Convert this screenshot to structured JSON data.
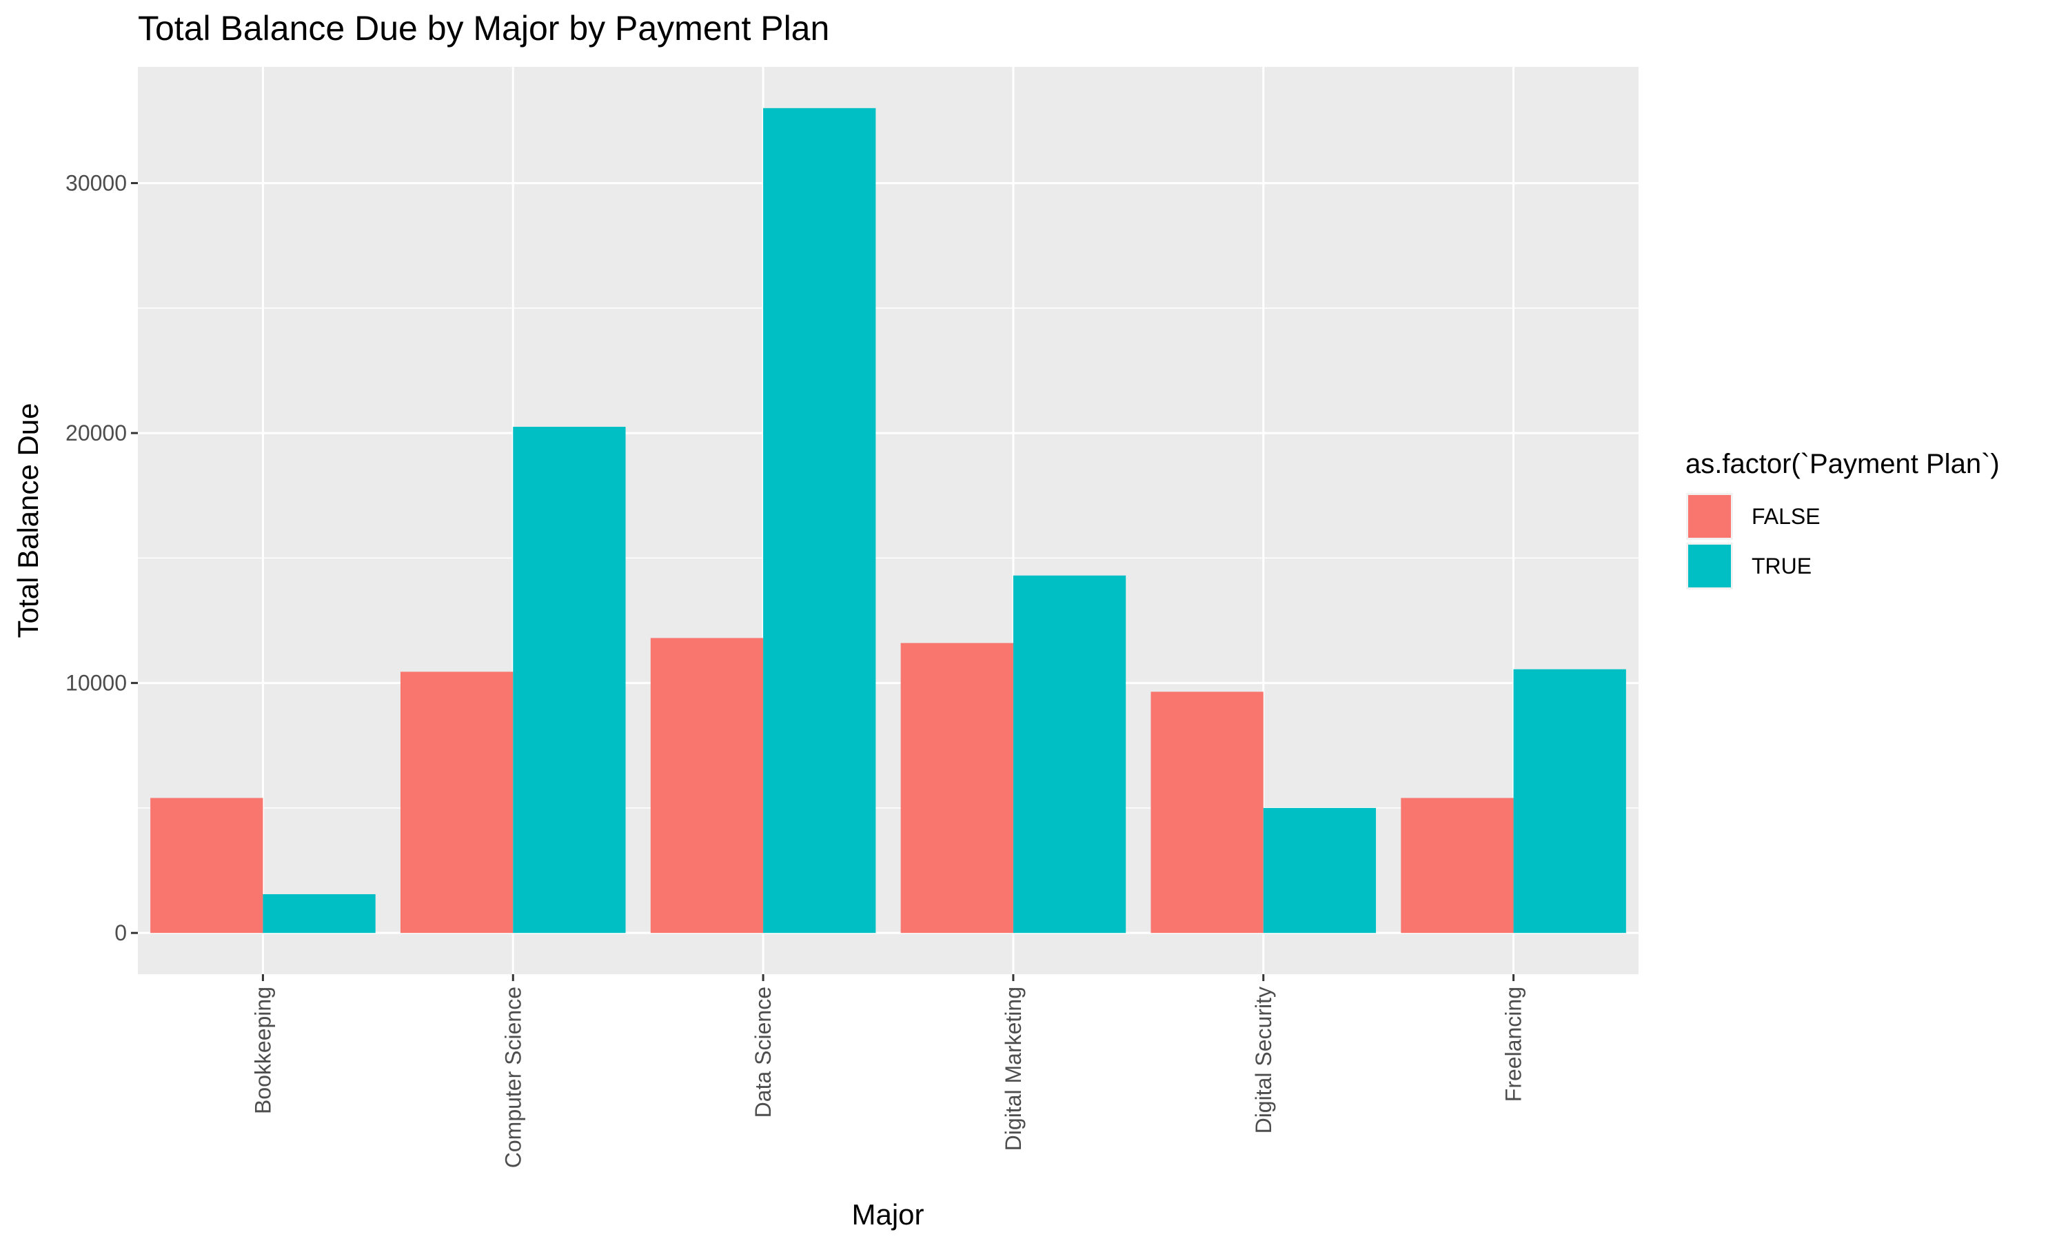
{
  "chart_data": {
    "type": "bar",
    "title": "Total Balance Due by Major by Payment Plan",
    "xlabel": "Major",
    "ylabel": "Total Balance Due",
    "categories": [
      "Bookkeeping",
      "Computer Science",
      "Data Science",
      "Digital Marketing",
      "Digital Security",
      "Freelancing"
    ],
    "series": [
      {
        "name": "FALSE",
        "color": "#F8766D",
        "values": [
          5400,
          10450,
          11800,
          11600,
          9650,
          5400
        ]
      },
      {
        "name": "TRUE",
        "color": "#00BFC4",
        "values": [
          1550,
          20250,
          33000,
          14300,
          5000,
          10550
        ]
      }
    ],
    "ylim": [
      -1650,
      34650
    ],
    "yticks": [
      0,
      10000,
      20000,
      30000
    ],
    "ytick_labels": [
      "0",
      "10000",
      "20000",
      "30000"
    ],
    "legend": {
      "title": "as.factor(`Payment Plan`)",
      "position": "right"
    },
    "grid": true,
    "panel_background": "#EBEBEB"
  }
}
